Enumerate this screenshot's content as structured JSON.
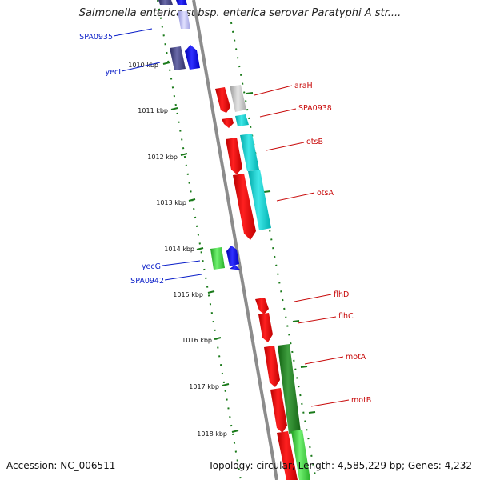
{
  "title": "Salmonella enterica subsp. enterica serovar Paratyphi A str....",
  "footer": {
    "accession": "Accession: NC_006511",
    "topology": "Topology: circular; Length: 4,585,229 bp; Genes: 4,232"
  },
  "colors": {
    "backbone": "#8c8c8c",
    "ruler": "#1a7a1a",
    "left_label": "#0a1ec8",
    "right_label": "#c80a0a"
  },
  "kbp_labels": [
    "1010 kbp",
    "1011 kbp",
    "1012 kbp",
    "1013 kbp",
    "1014 kbp",
    "1015 kbp",
    "1016 kbp",
    "1017 kbp",
    "1018 kbp"
  ],
  "left_gene_labels": [
    "SPA0935",
    "yecI",
    "yecG",
    "SPA0942"
  ],
  "right_gene_labels": [
    "araH",
    "SPA0938",
    "otsB",
    "otsA",
    "flhD",
    "flhC",
    "motA",
    "motB"
  ]
}
